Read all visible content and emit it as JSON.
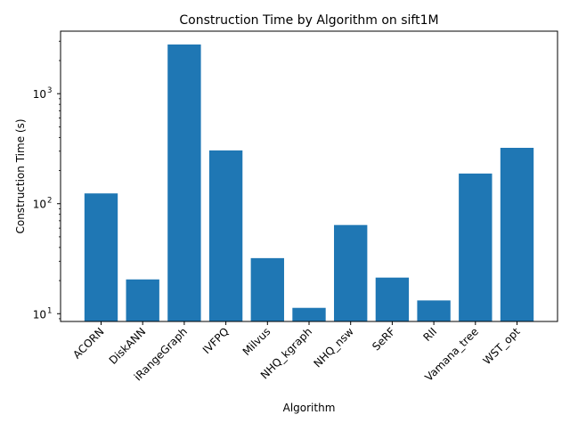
{
  "chart_data": {
    "type": "bar",
    "title": "Construction Time by Algorithm on sift1M",
    "xlabel": "Algorithm",
    "ylabel": "Construction Time (s)",
    "yscale": "log",
    "ylim": [
      8.5,
      3700
    ],
    "yticks": [
      {
        "value": 10,
        "base": "10",
        "exp": "1"
      },
      {
        "value": 100,
        "base": "10",
        "exp": "2"
      },
      {
        "value": 1000,
        "base": "10",
        "exp": "3"
      }
    ],
    "categories": [
      "ACORN",
      "DiskANN",
      "iRangeGraph",
      "IVFPQ",
      "Milvus",
      "NHQ_kgraph",
      "NHQ_nsw",
      "SeRF",
      "RII",
      "Vamana_tree",
      "WST_opt"
    ],
    "values": [
      124,
      20.5,
      2800,
      305,
      32,
      11.3,
      64,
      21.3,
      13.2,
      188,
      322
    ],
    "bar_color": "#1f77b4",
    "grid": false,
    "legend": "none"
  }
}
